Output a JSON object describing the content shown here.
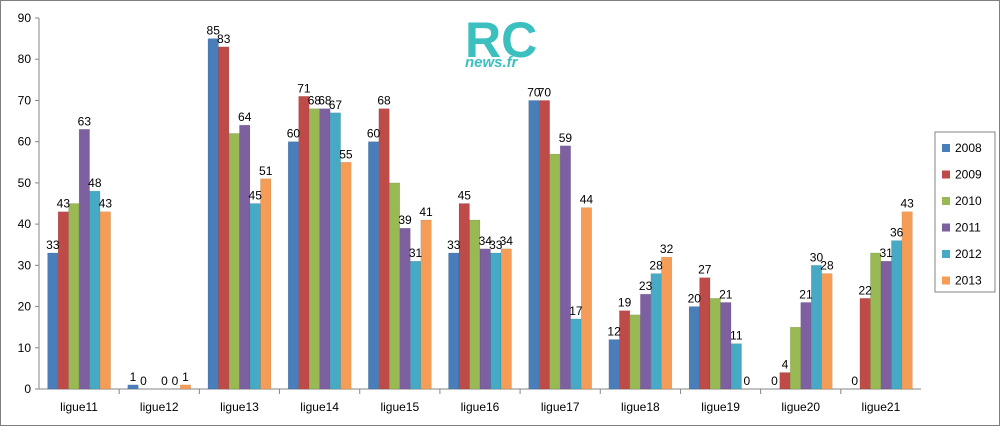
{
  "chart_data": {
    "type": "bar",
    "title": "",
    "xlabel": "",
    "ylabel": "",
    "ylim": [
      0,
      90
    ],
    "yticks": [
      0,
      10,
      20,
      30,
      40,
      50,
      60,
      70,
      80,
      90
    ],
    "grid": false,
    "legend_position": "right",
    "categories": [
      "ligue11",
      "ligue12",
      "ligue13",
      "ligue14",
      "ligue15",
      "ligue16",
      "ligue17",
      "ligue18",
      "ligue19",
      "ligue20",
      "ligue21"
    ],
    "series": [
      {
        "name": "2008",
        "color": "#4a7ebb",
        "values": [
          33,
          1,
          85,
          60,
          60,
          33,
          70,
          12,
          20,
          0,
          0
        ]
      },
      {
        "name": "2009",
        "color": "#be4b48",
        "values": [
          43,
          0,
          83,
          71,
          68,
          45,
          70,
          19,
          27,
          4,
          22
        ]
      },
      {
        "name": "2010",
        "color": "#98b954",
        "values": [
          45,
          0,
          62,
          68,
          50,
          41,
          57,
          18,
          22,
          15,
          33
        ]
      },
      {
        "name": "2011",
        "color": "#7d60a0",
        "values": [
          63,
          0,
          64,
          68,
          39,
          34,
          59,
          23,
          21,
          21,
          31
        ]
      },
      {
        "name": "2012",
        "color": "#46aac5",
        "values": [
          48,
          0,
          45,
          67,
          31,
          33,
          17,
          28,
          11,
          30,
          36
        ]
      },
      {
        "name": "2013",
        "color": "#f59d56",
        "values": [
          43,
          1,
          51,
          55,
          41,
          34,
          44,
          32,
          0,
          28,
          43
        ]
      }
    ],
    "data_labels": [
      [
        "33",
        "1",
        "85",
        "60",
        "60",
        "33",
        "70",
        "12",
        "20",
        "0",
        "0"
      ],
      [
        "43",
        "0",
        "83",
        "71",
        "68",
        "45",
        "70",
        "19",
        "27",
        "4",
        "22"
      ],
      [
        "",
        "",
        "",
        "68",
        "",
        "",
        "",
        "",
        "",
        "",
        ""
      ],
      [
        "63",
        "0",
        "64",
        "68",
        "39",
        "34",
        "59",
        "23",
        "21",
        "21",
        "31"
      ],
      [
        "48",
        "0",
        "45",
        "67",
        "31",
        "33",
        "17",
        "28",
        "11",
        "30",
        "36"
      ],
      [
        "43",
        "1",
        "51",
        "55",
        "41",
        "34",
        "44",
        "32",
        "0",
        "28",
        "43"
      ]
    ]
  },
  "logo": {
    "main": "RC",
    "sub": "news.fr"
  }
}
